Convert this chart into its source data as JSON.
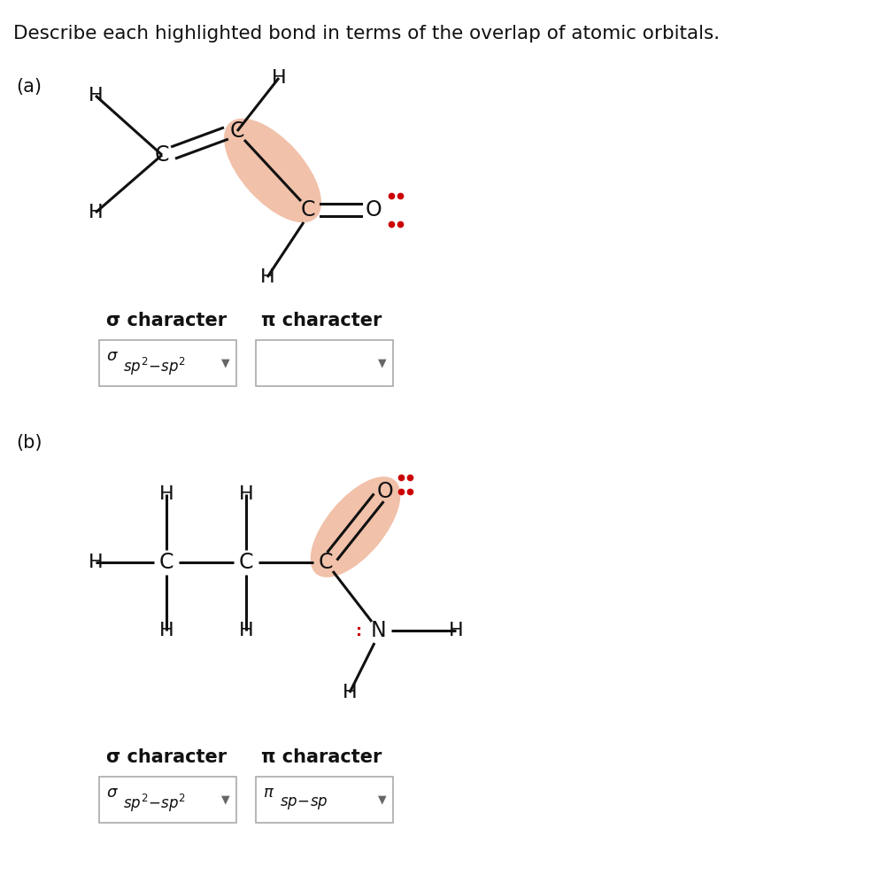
{
  "title": "Describe each highlighted bond in terms of the overlap of atomic orbitals.",
  "title_fontsize": 15.5,
  "bg_color": "#ffffff",
  "highlight_color": "#E8956D",
  "highlight_alpha": 0.58,
  "bond_color": "#111111",
  "atom_color": "#111111",
  "lone_pair_color": "#cc0000",
  "sigma_label": "σ character",
  "pi_label": "π character",
  "fig_w": 10.02,
  "fig_h": 9.88,
  "dpi": 100
}
